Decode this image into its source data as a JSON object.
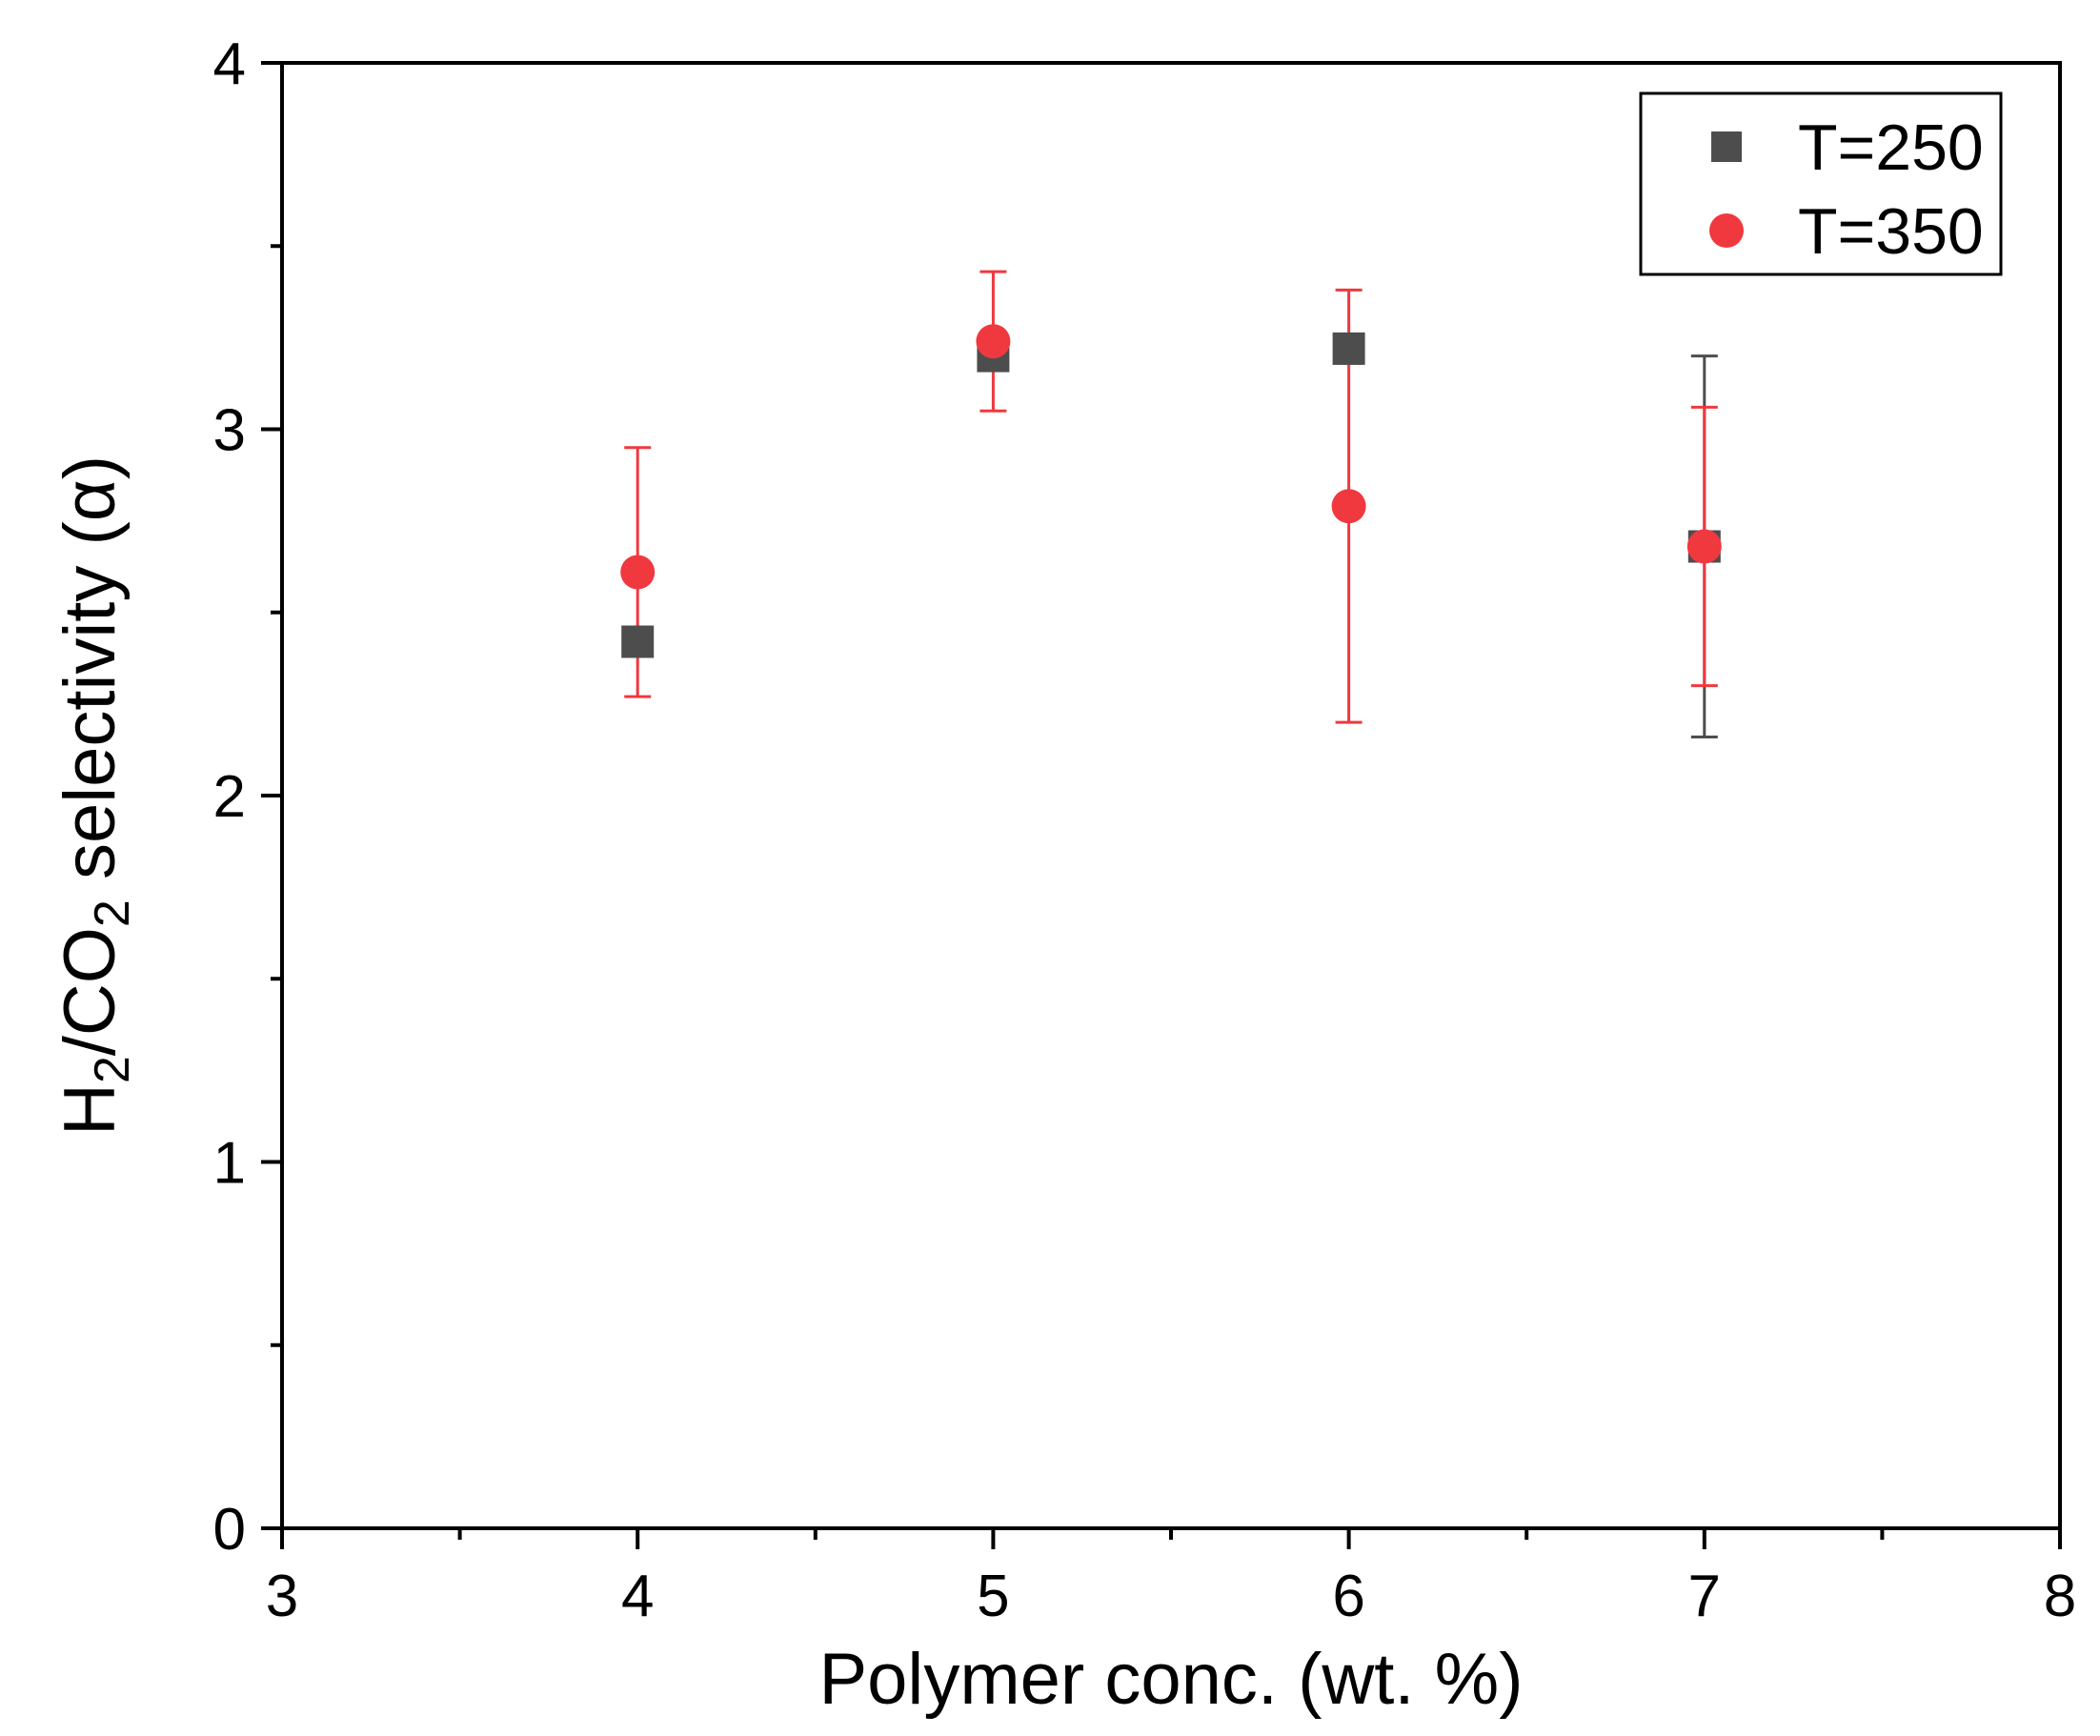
{
  "chart_data": {
    "type": "scatter",
    "xlabel": "Polymer conc. (wt. %)",
    "ylabel": {
      "parts": [
        {
          "text": "H",
          "sub": false
        },
        {
          "text": "2",
          "sub": true
        },
        {
          "text": "/CO",
          "sub": false
        },
        {
          "text": "2",
          "sub": true
        },
        {
          "text": " selectivity (",
          "sub": false
        },
        {
          "text": "α",
          "sub": false
        },
        {
          "text": ")",
          "sub": false
        }
      ]
    },
    "xlim": [
      3,
      8
    ],
    "ylim": [
      0,
      4
    ],
    "xticks": [
      "3",
      "4",
      "5",
      "6",
      "7",
      "8"
    ],
    "yticks": [
      "0",
      "1",
      "2",
      "3",
      "4"
    ],
    "x_minor_step": 0.5,
    "y_minor_step": 0.5,
    "grid": false,
    "legend_position": "top-right",
    "series": [
      {
        "name": "T=250",
        "marker": "square",
        "color": "#4d4d4d",
        "points": [
          {
            "x": 4,
            "y": 2.42,
            "err_low": 2.42,
            "err_high": 2.42
          },
          {
            "x": 5,
            "y": 3.2,
            "err_low": 3.18,
            "err_high": 3.22
          },
          {
            "x": 6,
            "y": 3.22,
            "err_low": 3.18,
            "err_high": 3.26
          },
          {
            "x": 7,
            "y": 2.68,
            "err_low": 2.16,
            "err_high": 3.2
          }
        ]
      },
      {
        "name": "T=350",
        "marker": "circle",
        "color": "#f0383f",
        "points": [
          {
            "x": 4,
            "y": 2.61,
            "err_low": 2.27,
            "err_high": 2.95
          },
          {
            "x": 5,
            "y": 3.24,
            "err_low": 3.05,
            "err_high": 3.43
          },
          {
            "x": 6,
            "y": 2.79,
            "err_low": 2.2,
            "err_high": 3.38
          },
          {
            "x": 7,
            "y": 2.68,
            "err_low": 2.3,
            "err_high": 3.06
          }
        ]
      }
    ]
  }
}
